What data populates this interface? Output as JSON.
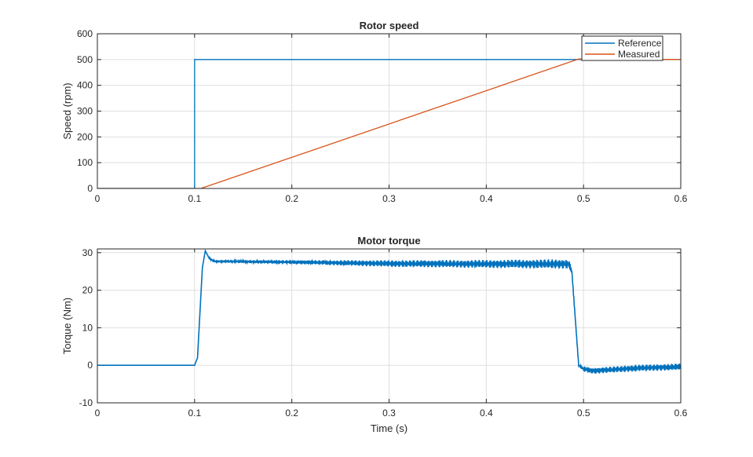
{
  "chart_data": [
    {
      "type": "line",
      "title": "Rotor speed",
      "xlabel": "",
      "ylabel": "Speed (rpm)",
      "xlim": [
        0,
        0.6
      ],
      "ylim": [
        0,
        600
      ],
      "xticks": [
        "0",
        "0.1",
        "0.2",
        "0.3",
        "0.4",
        "0.5",
        "0.6"
      ],
      "yticks": [
        "0",
        "100",
        "200",
        "300",
        "400",
        "500",
        "600"
      ],
      "grid": true,
      "legend_position": "top-right",
      "series": [
        {
          "name": "Reference",
          "color": "#0072BD",
          "x": [
            0,
            0.1,
            0.1,
            0.6
          ],
          "y": [
            0,
            0,
            500,
            500
          ]
        },
        {
          "name": "Measured",
          "color": "#D95319",
          "x": [
            0,
            0.1065,
            0.495,
            0.6
          ],
          "y": [
            0,
            0,
            502,
            500
          ]
        }
      ]
    },
    {
      "type": "line",
      "title": "Motor torque",
      "xlabel": "Time (s)",
      "ylabel": "Torque (Nm)",
      "xlim": [
        0,
        0.6
      ],
      "ylim": [
        -10,
        31
      ],
      "xticks": [
        "0",
        "0.1",
        "0.2",
        "0.3",
        "0.4",
        "0.5",
        "0.6"
      ],
      "yticks": [
        "-10",
        "0",
        "10",
        "20",
        "30"
      ],
      "grid": true,
      "series": [
        {
          "name": "Torque",
          "color": "#0072BD",
          "x": [
            0,
            0.1,
            0.103,
            0.108,
            0.111,
            0.115,
            0.12,
            0.2,
            0.3,
            0.4,
            0.485,
            0.488,
            0.495,
            0.5,
            0.51,
            0.55,
            0.6
          ],
          "y": [
            0,
            0,
            2,
            26,
            30.5,
            28.5,
            27.7,
            27.5,
            27.1,
            27,
            27,
            25,
            0,
            -1,
            -1.5,
            -0.8,
            -0.4
          ],
          "ripple_amplitude": [
            0,
            0,
            0,
            0,
            0,
            0.2,
            0.3,
            0.5,
            0.9,
            1.1,
            1.3,
            0.5,
            0.3,
            0.7,
            0.8,
            0.9,
            0.9
          ]
        }
      ]
    }
  ]
}
